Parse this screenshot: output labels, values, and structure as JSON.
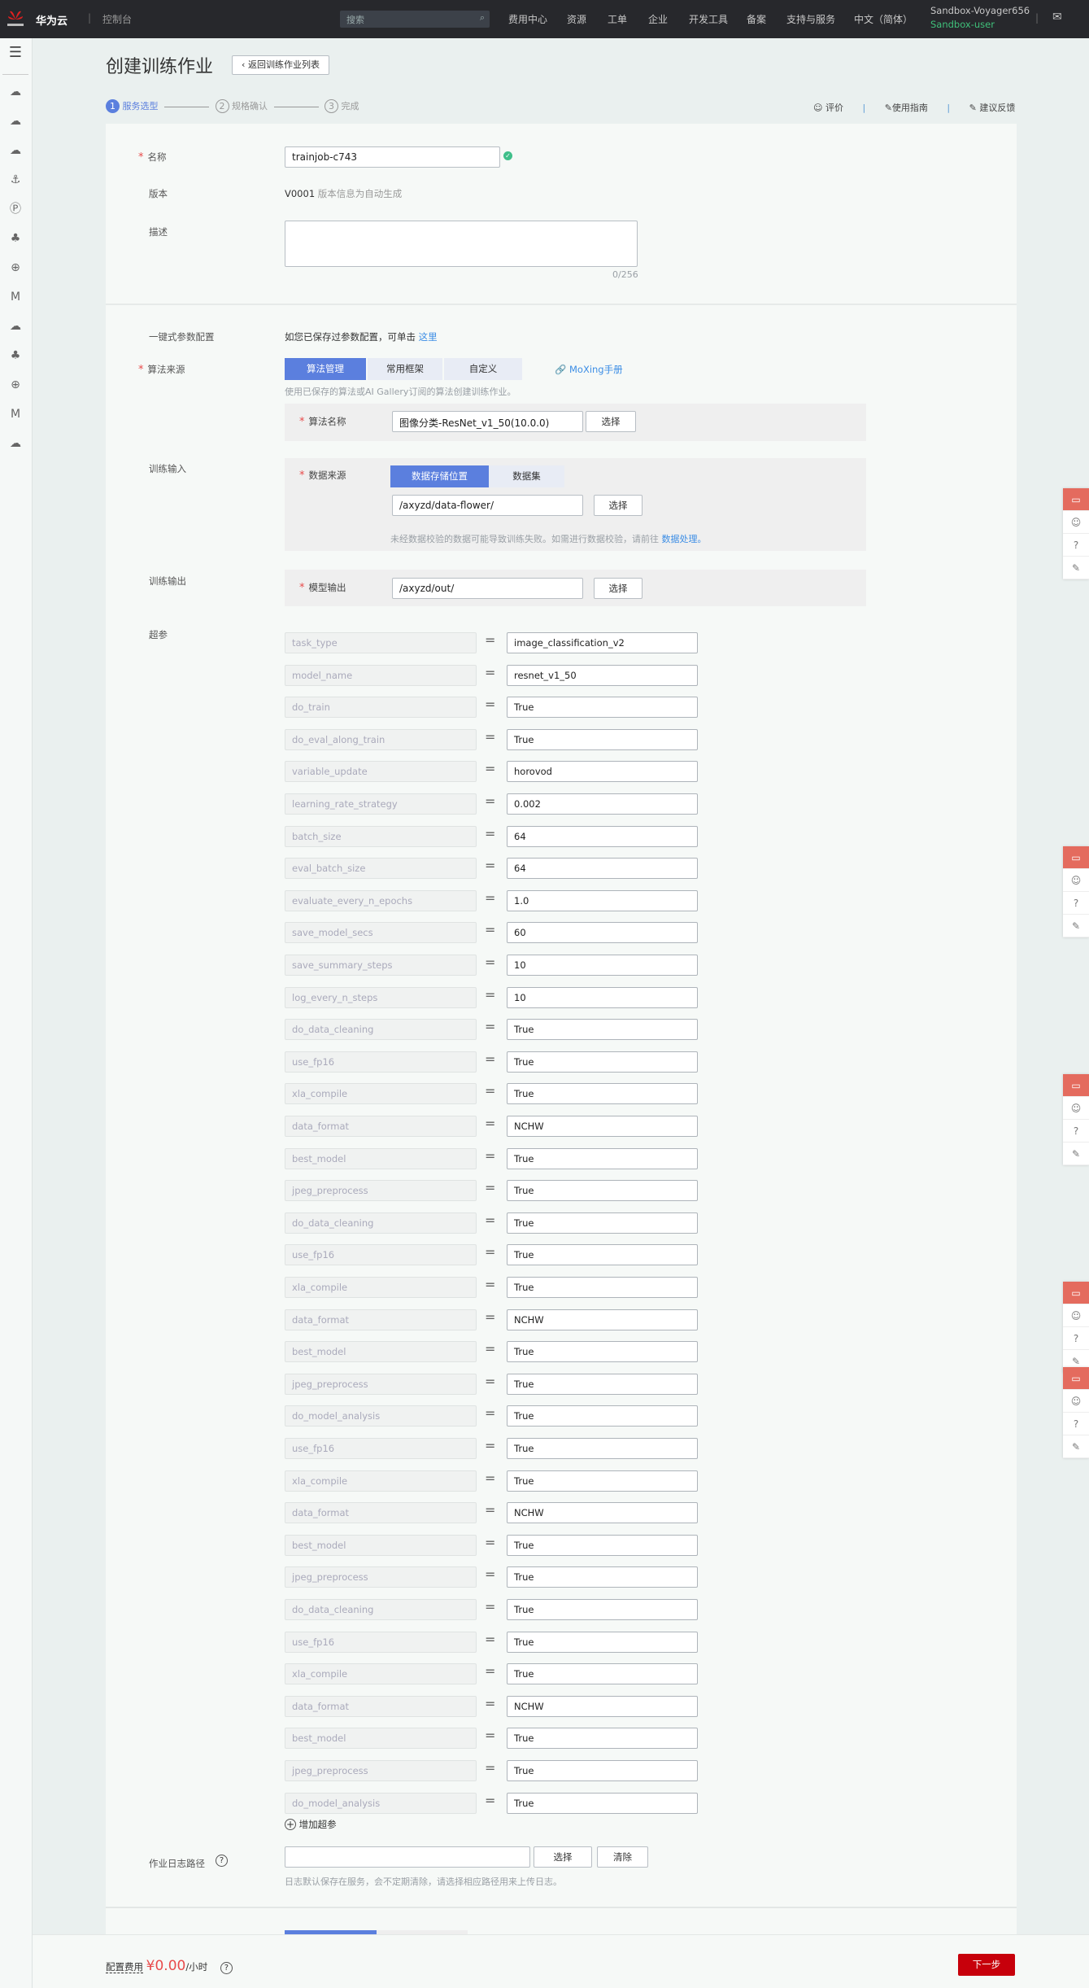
{
  "topbar": {
    "brand": "华为云",
    "console": "控制台",
    "search_placeholder": "搜索",
    "nav": [
      "费用中心",
      "资源",
      "工单",
      "企业",
      "开发工具",
      "备案",
      "支持与服务",
      "中文（简体）"
    ],
    "account": "Sandbox-Voyager656",
    "user": "Sandbox-user"
  },
  "sidebar": {
    "icons": [
      "cloud-server-icon",
      "cloud-icon",
      "cloud-ip-icon",
      "anchor-icon",
      "ip-icon",
      "cluster-icon",
      "globe-icon",
      "modelarts-icon",
      "cloud-upload-icon",
      "cluster-icon",
      "globe-icon",
      "modelarts-icon",
      "cloud-upload-icon"
    ]
  },
  "header": {
    "title": "创建训练作业",
    "back": "返回训练作业列表",
    "steps": [
      "服务选型",
      "规格确认",
      "完成"
    ],
    "links": [
      "评价",
      "使用指南",
      "建议反馈"
    ]
  },
  "form": {
    "name_label": "名称",
    "name_value": "trainjob-c743",
    "version_label": "版本",
    "version_value": "V0001",
    "version_hint": "版本信息为自动生成",
    "desc_label": "描述",
    "desc_count": "0/256",
    "oneclick_label": "一键式参数配置",
    "oneclick_text": "如您已保存过参数配置，可单击",
    "oneclick_link": "这里",
    "algo_source_label": "算法来源",
    "algo_tabs": [
      "算法管理",
      "常用框架",
      "自定义"
    ],
    "moxing_link": "MoXing手册",
    "algo_hint": "使用已保存的算法或AI Gallery订阅的算法创建训练作业。",
    "algo_name_label": "算法名称",
    "algo_name_value": "图像分类-ResNet_v1_50(10.0.0)",
    "select": "选择",
    "input_label": "训练输入",
    "datasource_label": "数据来源",
    "data_tabs": [
      "数据存储位置",
      "数据集"
    ],
    "data_path": "/axyzd/data-flower/",
    "data_hint": "未经数据校验的数据可能导致训练失败。如需进行数据校验，请前往",
    "data_hint_link": "数据处理。",
    "output_label": "训练输出",
    "model_output_label": "模型输出",
    "output_path": "/axyzd/out/",
    "hyper_label": "超参",
    "params": [
      [
        "task_type",
        "image_classification_v2"
      ],
      [
        "model_name",
        "resnet_v1_50"
      ],
      [
        "do_train",
        "True"
      ],
      [
        "do_eval_along_train",
        "True"
      ],
      [
        "variable_update",
        "horovod"
      ],
      [
        "learning_rate_strategy",
        "0.002"
      ],
      [
        "batch_size",
        "64"
      ],
      [
        "eval_batch_size",
        "64"
      ],
      [
        "evaluate_every_n_epochs",
        "1.0"
      ],
      [
        "save_model_secs",
        "60"
      ],
      [
        "save_summary_steps",
        "10"
      ],
      [
        "log_every_n_steps",
        "10"
      ],
      [
        "do_data_cleaning",
        "True"
      ],
      [
        "use_fp16",
        "True"
      ],
      [
        "xla_compile",
        "True"
      ],
      [
        "data_format",
        "NCHW"
      ],
      [
        "best_model",
        "True"
      ],
      [
        "jpeg_preprocess",
        "True"
      ],
      [
        "do_data_cleaning",
        "True"
      ],
      [
        "use_fp16",
        "True"
      ],
      [
        "xla_compile",
        "True"
      ],
      [
        "data_format",
        "NCHW"
      ],
      [
        "best_model",
        "True"
      ],
      [
        "jpeg_preprocess",
        "True"
      ],
      [
        "do_model_analysis",
        "True"
      ],
      [
        "use_fp16",
        "True"
      ],
      [
        "xla_compile",
        "True"
      ],
      [
        "data_format",
        "NCHW"
      ],
      [
        "best_model",
        "True"
      ],
      [
        "jpeg_preprocess",
        "True"
      ],
      [
        "do_data_cleaning",
        "True"
      ],
      [
        "use_fp16",
        "True"
      ],
      [
        "xla_compile",
        "True"
      ],
      [
        "data_format",
        "NCHW"
      ],
      [
        "best_model",
        "True"
      ],
      [
        "jpeg_preprocess",
        "True"
      ],
      [
        "do_model_analysis",
        "True"
      ]
    ],
    "add_param": "增加超参",
    "log_label": "作业日志路径",
    "clear": "清除",
    "log_hint": "日志默认保存在服务，会不定期清除，请选择相应路径用来上传日志。"
  },
  "footer": {
    "fee_label": "配置费用",
    "fee_value": "¥0.00",
    "fee_unit": "/小时",
    "next": "下一步"
  },
  "colors": {
    "accent": "#5b7fde",
    "danger": "#c7000b",
    "topbar": "#27282c"
  }
}
